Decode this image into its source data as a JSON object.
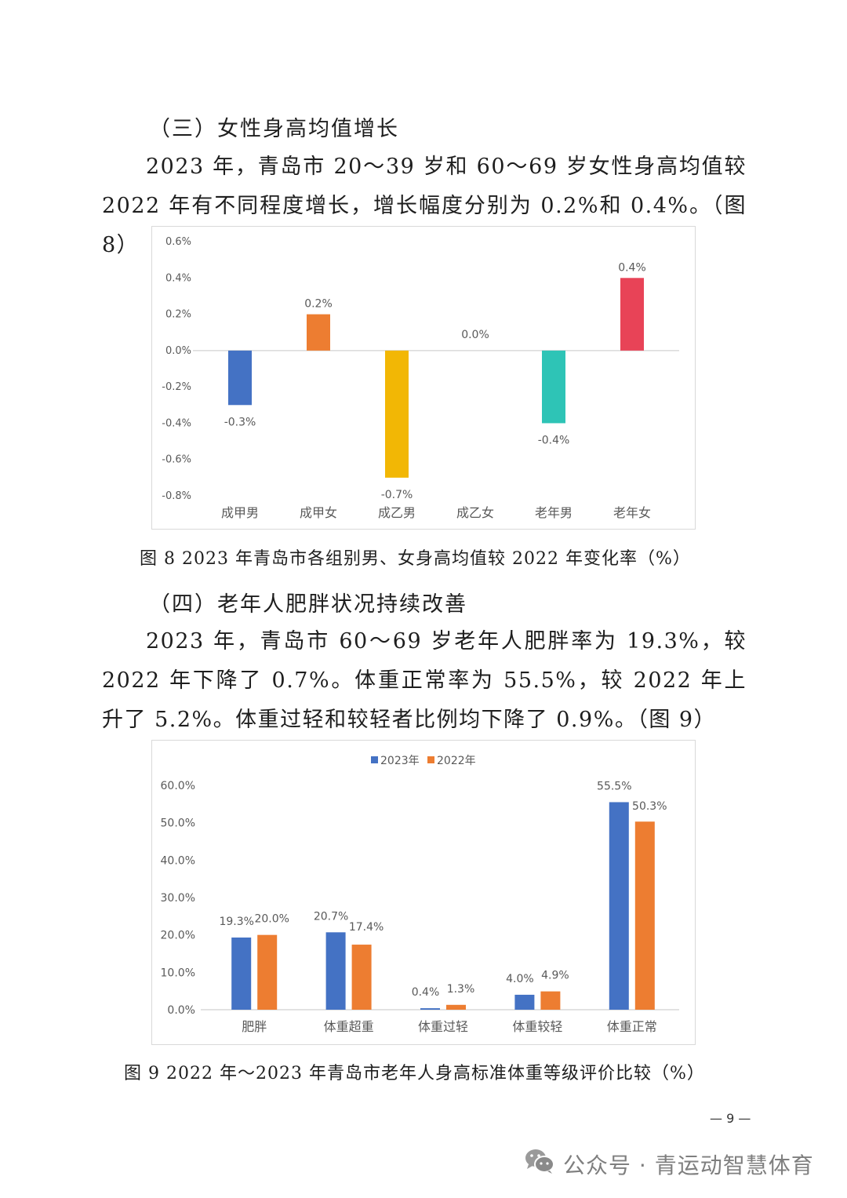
{
  "section3": {
    "heading": "（三）女性身高均值增长",
    "paragraph": "2023 年，青岛市 20～39 岁和 60～69 岁女性身高均值较 2022 年有不同程度增长，增长幅度分别为 0.2%和 0.4%。（图 8）"
  },
  "figure8": {
    "caption": "图 8  2023 年青岛市各组别男、女身高均值较 2022 年变化率（%）"
  },
  "section4": {
    "heading": "（四）老年人肥胖状况持续改善",
    "paragraph": "2023 年，青岛市 60～69 岁老年人肥胖率为 19.3%，较 2022 年下降了 0.7%。体重正常率为 55.5%，较 2022 年上升了 5.2%。体重过轻和较轻者比例均下降了 0.9%。（图 9）"
  },
  "figure9": {
    "caption": "图 9  2022 年～2023 年青岛市老年人身高标准体重等级评价比较（%）"
  },
  "footer": {
    "page_number": "— 9 —",
    "watermark_text": "公众号 · 青运动智慧体育",
    "watermark_icon": "wechat-icon"
  },
  "chart_data": [
    {
      "type": "bar",
      "title": "",
      "categories": [
        "成甲男",
        "成甲女",
        "成乙男",
        "成乙女",
        "老年男",
        "老年女"
      ],
      "values": [
        -0.3,
        0.2,
        -0.7,
        0.0,
        -0.4,
        0.4
      ],
      "value_labels": [
        "-0.3%",
        "0.2%",
        "-0.7%",
        "0.0%",
        "-0.4%",
        "0.4%"
      ],
      "colors": [
        "#4472c4",
        "#ed7d31",
        "#f2b705",
        "#a5a5a5",
        "#2ec4b6",
        "#e84357"
      ],
      "xlabel": "",
      "ylabel": "",
      "ylim": [
        -0.8,
        0.6
      ],
      "yticks": [
        "0.6%",
        "0.4%",
        "0.2%",
        "0.0%",
        "-0.2%",
        "-0.4%",
        "-0.6%",
        "-0.8%"
      ],
      "grid": false,
      "legend": "none"
    },
    {
      "type": "bar",
      "title": "",
      "categories": [
        "肥胖",
        "体重超重",
        "体重过轻",
        "体重较轻",
        "体重正常"
      ],
      "series": [
        {
          "name": "2023年",
          "color": "#4472c4",
          "values": [
            19.3,
            20.7,
            0.4,
            4.0,
            55.5
          ],
          "labels": [
            "19.3%",
            "20.7%",
            "0.4%",
            "4.0%",
            "55.5%"
          ]
        },
        {
          "name": "2022年",
          "color": "#ed7d31",
          "values": [
            20.0,
            17.4,
            1.3,
            4.9,
            50.3
          ],
          "labels": [
            "20.0%",
            "17.4%",
            "1.3%",
            "4.9%",
            "50.3%"
          ]
        }
      ],
      "xlabel": "",
      "ylabel": "",
      "ylim": [
        0,
        60
      ],
      "yticks": [
        "60.0%",
        "50.0%",
        "40.0%",
        "30.0%",
        "20.0%",
        "10.0%",
        "0.0%"
      ],
      "grid": false,
      "legend": "top"
    }
  ]
}
